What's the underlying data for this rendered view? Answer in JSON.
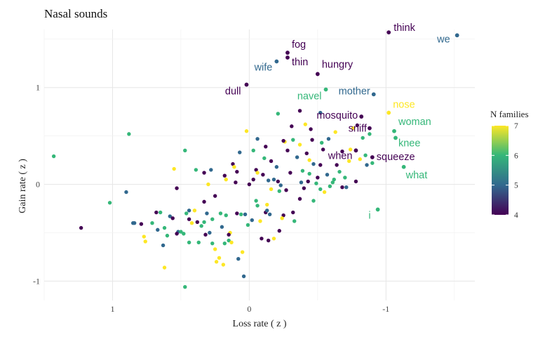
{
  "chart_data": {
    "type": "scatter",
    "title": "Nasal sounds",
    "xlabel": "Loss rate ( z )",
    "ylabel": "Gain rate ( z )",
    "x_reversed": true,
    "xlim": [
      1.5,
      -1.65
    ],
    "ylim": [
      -1.2,
      1.6
    ],
    "x_ticks": [
      1,
      0,
      -1
    ],
    "x_tick_labels": [
      "1",
      "0",
      "-1"
    ],
    "y_ticks": [
      -1,
      0,
      1
    ],
    "y_tick_labels": [
      "-1",
      "0",
      "1"
    ],
    "grid": true,
    "legend": {
      "title": "N families",
      "position": "right",
      "min": 4,
      "max": 7,
      "ticks": [
        7,
        6,
        5,
        4
      ],
      "palette": [
        "#440154",
        "#31688e",
        "#35b779",
        "#fde725"
      ]
    },
    "labeled_points": [
      {
        "word": "think",
        "x": -1.02,
        "y": 1.57,
        "n": 4
      },
      {
        "word": "we",
        "x": -1.52,
        "y": 1.54,
        "n": 5
      },
      {
        "word": "fog",
        "x": -0.28,
        "y": 1.36,
        "n": 4
      },
      {
        "word": "wife",
        "x": -0.2,
        "y": 1.27,
        "n": 5
      },
      {
        "word": "thin",
        "x": -0.28,
        "y": 1.31,
        "n": 4
      },
      {
        "word": "hungry",
        "x": -0.5,
        "y": 1.14,
        "n": 4
      },
      {
        "word": "dull",
        "x": 0.02,
        "y": 1.03,
        "n": 4
      },
      {
        "word": "navel",
        "x": -0.56,
        "y": 0.98,
        "n": 6
      },
      {
        "word": "mother",
        "x": -0.91,
        "y": 0.93,
        "n": 5
      },
      {
        "word": "nose",
        "x": -1.02,
        "y": 0.74,
        "n": 7
      },
      {
        "word": "mosquito",
        "x": -0.82,
        "y": 0.7,
        "n": 4
      },
      {
        "word": "woman",
        "x": -1.06,
        "y": 0.55,
        "n": 6
      },
      {
        "word": "sniff",
        "x": -0.88,
        "y": 0.58,
        "n": 4
      },
      {
        "word": "knee",
        "x": -1.07,
        "y": 0.48,
        "n": 6
      },
      {
        "word": "when",
        "x": -0.78,
        "y": 0.35,
        "n": 4
      },
      {
        "word": "squeeze",
        "x": -0.9,
        "y": 0.28,
        "n": 4
      },
      {
        "word": "what",
        "x": -1.13,
        "y": 0.18,
        "n": 6
      },
      {
        "word": "i",
        "x": -0.94,
        "y": -0.26,
        "n": 6
      }
    ],
    "points": [
      [
        1.43,
        0.29,
        6
      ],
      [
        1.23,
        -0.45,
        4
      ],
      [
        1.02,
        -0.19,
        6
      ],
      [
        0.88,
        0.52,
        6
      ],
      [
        0.9,
        -0.08,
        5
      ],
      [
        0.84,
        -0.4,
        5
      ],
      [
        0.85,
        -0.4,
        5
      ],
      [
        0.79,
        -0.41,
        4
      ],
      [
        0.77,
        -0.54,
        7
      ],
      [
        0.76,
        -0.59,
        7
      ],
      [
        0.71,
        -0.4,
        6
      ],
      [
        0.68,
        -0.29,
        4
      ],
      [
        0.67,
        -0.47,
        5
      ],
      [
        0.65,
        -0.29,
        6
      ],
      [
        0.63,
        -0.63,
        5
      ],
      [
        0.62,
        -0.86,
        7
      ],
      [
        0.62,
        -0.45,
        6
      ],
      [
        0.6,
        -0.53,
        6
      ],
      [
        0.58,
        -0.33,
        5
      ],
      [
        0.55,
        0.16,
        7
      ],
      [
        0.53,
        -0.04,
        4
      ],
      [
        0.52,
        -0.49,
        5
      ],
      [
        0.5,
        -0.49,
        6
      ],
      [
        0.48,
        -0.51,
        6
      ],
      [
        0.47,
        0.35,
        6
      ],
      [
        0.47,
        -1.06,
        6
      ],
      [
        0.46,
        -0.3,
        6
      ],
      [
        0.44,
        -0.6,
        6
      ],
      [
        0.42,
        -0.4,
        7
      ],
      [
        0.4,
        -0.27,
        7
      ],
      [
        0.39,
        0.15,
        6
      ],
      [
        0.38,
        -0.39,
        4
      ],
      [
        0.37,
        -0.6,
        6
      ],
      [
        0.35,
        -0.43,
        6
      ],
      [
        0.33,
        -0.18,
        4
      ],
      [
        0.32,
        -0.52,
        4
      ],
      [
        0.31,
        -0.3,
        5
      ],
      [
        0.3,
        0.0,
        7
      ],
      [
        0.29,
        -0.5,
        5
      ],
      [
        0.28,
        0.15,
        5
      ],
      [
        0.27,
        -0.36,
        6
      ],
      [
        0.25,
        -0.67,
        7
      ],
      [
        0.24,
        -0.8,
        7
      ],
      [
        0.22,
        -0.76,
        7
      ],
      [
        0.2,
        -0.44,
        5
      ],
      [
        0.19,
        -0.83,
        7
      ],
      [
        0.18,
        -0.61,
        6
      ],
      [
        0.17,
        0.05,
        7
      ],
      [
        0.17,
        -0.32,
        6
      ],
      [
        0.15,
        -0.58,
        6
      ],
      [
        0.14,
        -0.5,
        7
      ],
      [
        0.13,
        -0.6,
        7
      ],
      [
        0.12,
        0.21,
        4
      ],
      [
        0.11,
        0.18,
        7
      ],
      [
        0.1,
        0.02,
        4
      ],
      [
        0.09,
        -0.3,
        4
      ],
      [
        0.08,
        -0.77,
        5
      ],
      [
        0.07,
        0.33,
        5
      ],
      [
        0.06,
        -0.31,
        6
      ],
      [
        0.05,
        -0.7,
        7
      ],
      [
        0.04,
        -0.95,
        5
      ],
      [
        0.03,
        -0.31,
        5
      ],
      [
        0.01,
        -0.42,
        6
      ],
      [
        0.0,
        0.0,
        4
      ],
      [
        -0.02,
        -0.37,
        5
      ],
      [
        -0.03,
        0.35,
        6
      ],
      [
        -0.05,
        0.15,
        4
      ],
      [
        -0.06,
        -0.22,
        6
      ],
      [
        -0.08,
        -0.38,
        7
      ],
      [
        -0.09,
        -0.56,
        4
      ],
      [
        -0.1,
        0.1,
        4
      ],
      [
        -0.12,
        -0.29,
        4
      ],
      [
        -0.13,
        -0.27,
        5
      ],
      [
        -0.14,
        0.04,
        5
      ],
      [
        -0.15,
        -0.31,
        5
      ],
      [
        -0.16,
        0.24,
        4
      ],
      [
        -0.18,
        -0.56,
        7
      ],
      [
        -0.2,
        0.18,
        5
      ],
      [
        -0.21,
        0.73,
        6
      ],
      [
        -0.22,
        -0.07,
        6
      ],
      [
        -0.23,
        -0.01,
        5
      ],
      [
        -0.25,
        -0.32,
        4
      ],
      [
        -0.26,
        0.44,
        7
      ],
      [
        -0.27,
        -0.06,
        4
      ],
      [
        -0.28,
        0.35,
        4
      ],
      [
        -0.3,
        0.12,
        4
      ],
      [
        -0.31,
        0.6,
        4
      ],
      [
        -0.32,
        -0.29,
        4
      ],
      [
        -0.33,
        -0.38,
        6
      ],
      [
        -0.35,
        0.28,
        5
      ],
      [
        -0.37,
        0.41,
        7
      ],
      [
        -0.38,
        0.02,
        5
      ],
      [
        -0.39,
        0.14,
        6
      ],
      [
        -0.4,
        -0.04,
        4
      ],
      [
        -0.42,
        0.32,
        4
      ],
      [
        -0.43,
        0.03,
        4
      ],
      [
        -0.44,
        0.25,
        7
      ],
      [
        -0.46,
        0.46,
        4
      ],
      [
        -0.47,
        0.21,
        5
      ],
      [
        -0.49,
        0.01,
        6
      ],
      [
        -0.5,
        0.07,
        4
      ],
      [
        -0.52,
        -0.05,
        6
      ],
      [
        -0.54,
        0.36,
        4
      ],
      [
        -0.55,
        -0.08,
        7
      ],
      [
        -0.57,
        0.1,
        5
      ],
      [
        -0.59,
        -0.02,
        6
      ],
      [
        -0.61,
        0.02,
        6
      ],
      [
        -0.63,
        0.54,
        7
      ],
      [
        -0.64,
        0.2,
        4
      ],
      [
        -0.66,
        0.13,
        6
      ],
      [
        -0.68,
        0.34,
        4
      ],
      [
        -0.7,
        0.07,
        6
      ],
      [
        -0.71,
        -0.03,
        5
      ],
      [
        -0.73,
        0.24,
        7
      ],
      [
        -0.74,
        0.36,
        7
      ],
      [
        -0.76,
        0.58,
        7
      ],
      [
        -0.78,
        0.03,
        4
      ],
      [
        -0.79,
        0.61,
        4
      ],
      [
        -0.81,
        0.26,
        7
      ],
      [
        -0.83,
        0.48,
        6
      ],
      [
        -0.85,
        0.3,
        6
      ],
      [
        -0.86,
        0.2,
        5
      ],
      [
        -0.88,
        0.52,
        6
      ],
      [
        -0.9,
        0.22,
        6
      ],
      [
        -0.37,
        0.76,
        4
      ],
      [
        -0.45,
        0.57,
        4
      ],
      [
        -0.58,
        0.47,
        5
      ],
      [
        -0.18,
        0.05,
        5
      ],
      [
        -0.06,
        0.47,
        5
      ],
      [
        0.02,
        0.55,
        7
      ],
      [
        -0.11,
        0.27,
        6
      ],
      [
        -0.32,
        0.46,
        6
      ],
      [
        -0.52,
        0.74,
        5
      ],
      [
        -0.41,
        0.62,
        7
      ],
      [
        0.25,
        -0.12,
        4
      ],
      [
        0.44,
        -0.36,
        4
      ],
      [
        0.15,
        -0.52,
        4
      ],
      [
        -0.22,
        -0.48,
        4
      ],
      [
        -0.37,
        -0.15,
        4
      ],
      [
        -0.52,
        0.2,
        4
      ],
      [
        -0.21,
        0.03,
        4
      ],
      [
        -0.06,
        0.12,
        7
      ],
      [
        -0.12,
        0.39,
        4
      ],
      [
        0.09,
        0.13,
        4
      ],
      [
        0.33,
        0.12,
        4
      ],
      [
        0.53,
        -0.51,
        4
      ],
      [
        0.44,
        -0.27,
        5
      ],
      [
        0.21,
        -0.3,
        6
      ],
      [
        -0.14,
        -0.58,
        4
      ],
      [
        -0.47,
        -0.17,
        6
      ],
      [
        -0.62,
        0.05,
        6
      ],
      [
        -0.68,
        -0.03,
        4
      ],
      [
        -0.03,
        0.05,
        4
      ],
      [
        -0.24,
        -0.35,
        7
      ],
      [
        0.27,
        -0.61,
        6
      ],
      [
        -0.05,
        -0.17,
        6
      ],
      [
        -0.16,
        -0.05,
        7
      ],
      [
        0.56,
        -0.35,
        4
      ],
      [
        0.33,
        -0.39,
        6
      ],
      [
        -0.13,
        -0.21,
        7
      ],
      [
        0.18,
        0.09,
        4
      ],
      [
        -0.44,
        0.11,
        6
      ],
      [
        -0.53,
        0.43,
        6
      ],
      [
        -0.25,
        0.45,
        4
      ]
    ]
  }
}
